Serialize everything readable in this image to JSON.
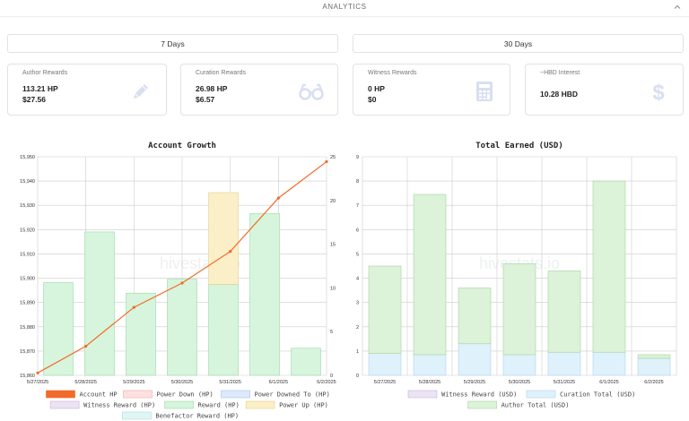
{
  "section": {
    "title": "ANALYTICS",
    "collapse_icon": "chevron-up-icon"
  },
  "periods": [
    "7 Days",
    "30 Days"
  ],
  "cards": [
    {
      "label": "Author Rewards",
      "value_hp": "113.21 HP",
      "value_usd": "$27.56",
      "icon": "pencil-icon"
    },
    {
      "label": "Curation Rewards",
      "value_hp": "26.98 HP",
      "value_usd": "$6.57",
      "icon": "glasses-icon"
    },
    {
      "label": "Witness Rewards",
      "value_hp": "0 HP",
      "value_usd": "$0",
      "icon": "calculator-icon"
    },
    {
      "label": "~HBD Interest",
      "value_hp": "10.28 HBD",
      "value_usd": "",
      "icon": "dollar-icon"
    }
  ],
  "colors": {
    "line": "#f26a2a",
    "reward": "#d6f5dc",
    "reward_border": "#9bd9a6",
    "power_up": "#fbefc8",
    "power_up_border": "#e6cf85",
    "curation": "#dff1fb",
    "curation_border": "#aed6ee",
    "author": "#dcf2d9",
    "author_border": "#a5d69d",
    "grid": "#cccccc",
    "icon": "#d7dff0"
  },
  "watermark": "hivestats.io",
  "chart_data": [
    {
      "type": "bar",
      "title": "Account Growth",
      "categories": [
        "5/27/2025",
        "5/28/2025",
        "5/29/2025",
        "5/30/2025",
        "5/31/2025",
        "6/1/2025",
        "6/2/2025"
      ],
      "y_left_ticks": [
        "15,950",
        "15,940",
        "15,930",
        "15,920",
        "15,910",
        "15,900",
        "15,890",
        "15,880",
        "15,870",
        "15,860"
      ],
      "y_right_ticks": [
        "25",
        "20",
        "15",
        "10",
        "5",
        "0"
      ],
      "ylim_left": [
        15860,
        15950
      ],
      "ylim_right": [
        0,
        25
      ],
      "series": [
        {
          "name": "Account HP",
          "type": "line",
          "axis": "left",
          "values": [
            15861,
            15872,
            15888,
            15898,
            15911,
            15933,
            15948
          ]
        },
        {
          "name": "Reward (HP)",
          "type": "bar",
          "axis": "right",
          "values": [
            10.6,
            16.4,
            9.4,
            11.0,
            10.4,
            18.5,
            3.1
          ]
        },
        {
          "name": "Power Up (HP)",
          "type": "bar",
          "axis": "right",
          "stack_on": "Reward (HP)",
          "values": [
            0,
            0,
            0,
            0,
            10.5,
            0,
            0
          ]
        }
      ],
      "legend": [
        {
          "name": "Account HP",
          "color": "#f26a2a",
          "border": "#f26a2a"
        },
        {
          "name": "Power Down (HP)",
          "color": "#fde1e1",
          "border": "#f3a7a7"
        },
        {
          "name": "Power Downed To (HP)",
          "color": "#dde9fb",
          "border": "#a7c3ee"
        },
        {
          "name": "Witness Reward (HP)",
          "color": "#ece3f3",
          "border": "#c7b2da"
        },
        {
          "name": "Reward (HP)",
          "color": "#d6f5dc",
          "border": "#9bd9a6"
        },
        {
          "name": "Power Up (HP)",
          "color": "#fbefc8",
          "border": "#e6cf85"
        },
        {
          "name": "Benefactor Reward (HP)",
          "color": "#e0f6f4",
          "border": "#a9e0da"
        }
      ]
    },
    {
      "type": "bar",
      "title": "Total Earned (USD)",
      "categories": [
        "5/27/2025",
        "5/28/2025",
        "5/29/2025",
        "5/30/2025",
        "5/31/2025",
        "6/1/2025",
        "6/2/2025"
      ],
      "y_ticks": [
        "9",
        "8",
        "7",
        "6",
        "5",
        "4",
        "3",
        "2",
        "1",
        "0"
      ],
      "ylim": [
        0,
        9
      ],
      "series": [
        {
          "name": "Witness Reward (USD)",
          "values": [
            0,
            0,
            0,
            0,
            0,
            0,
            0
          ]
        },
        {
          "name": "Curation Total (USD)",
          "values": [
            0.9,
            0.85,
            1.3,
            0.85,
            0.95,
            0.95,
            0.7
          ]
        },
        {
          "name": "Author Total (USD)",
          "values": [
            3.6,
            6.6,
            2.3,
            3.75,
            3.35,
            7.05,
            0.15
          ]
        }
      ],
      "legend": [
        {
          "name": "Witness Reward (USD)",
          "color": "#ece3f3",
          "border": "#c7b2da"
        },
        {
          "name": "Curation Total (USD)",
          "color": "#dff1fb",
          "border": "#aed6ee"
        },
        {
          "name": "Author Total (USD)",
          "color": "#dcf2d9",
          "border": "#a5d69d"
        }
      ]
    }
  ]
}
